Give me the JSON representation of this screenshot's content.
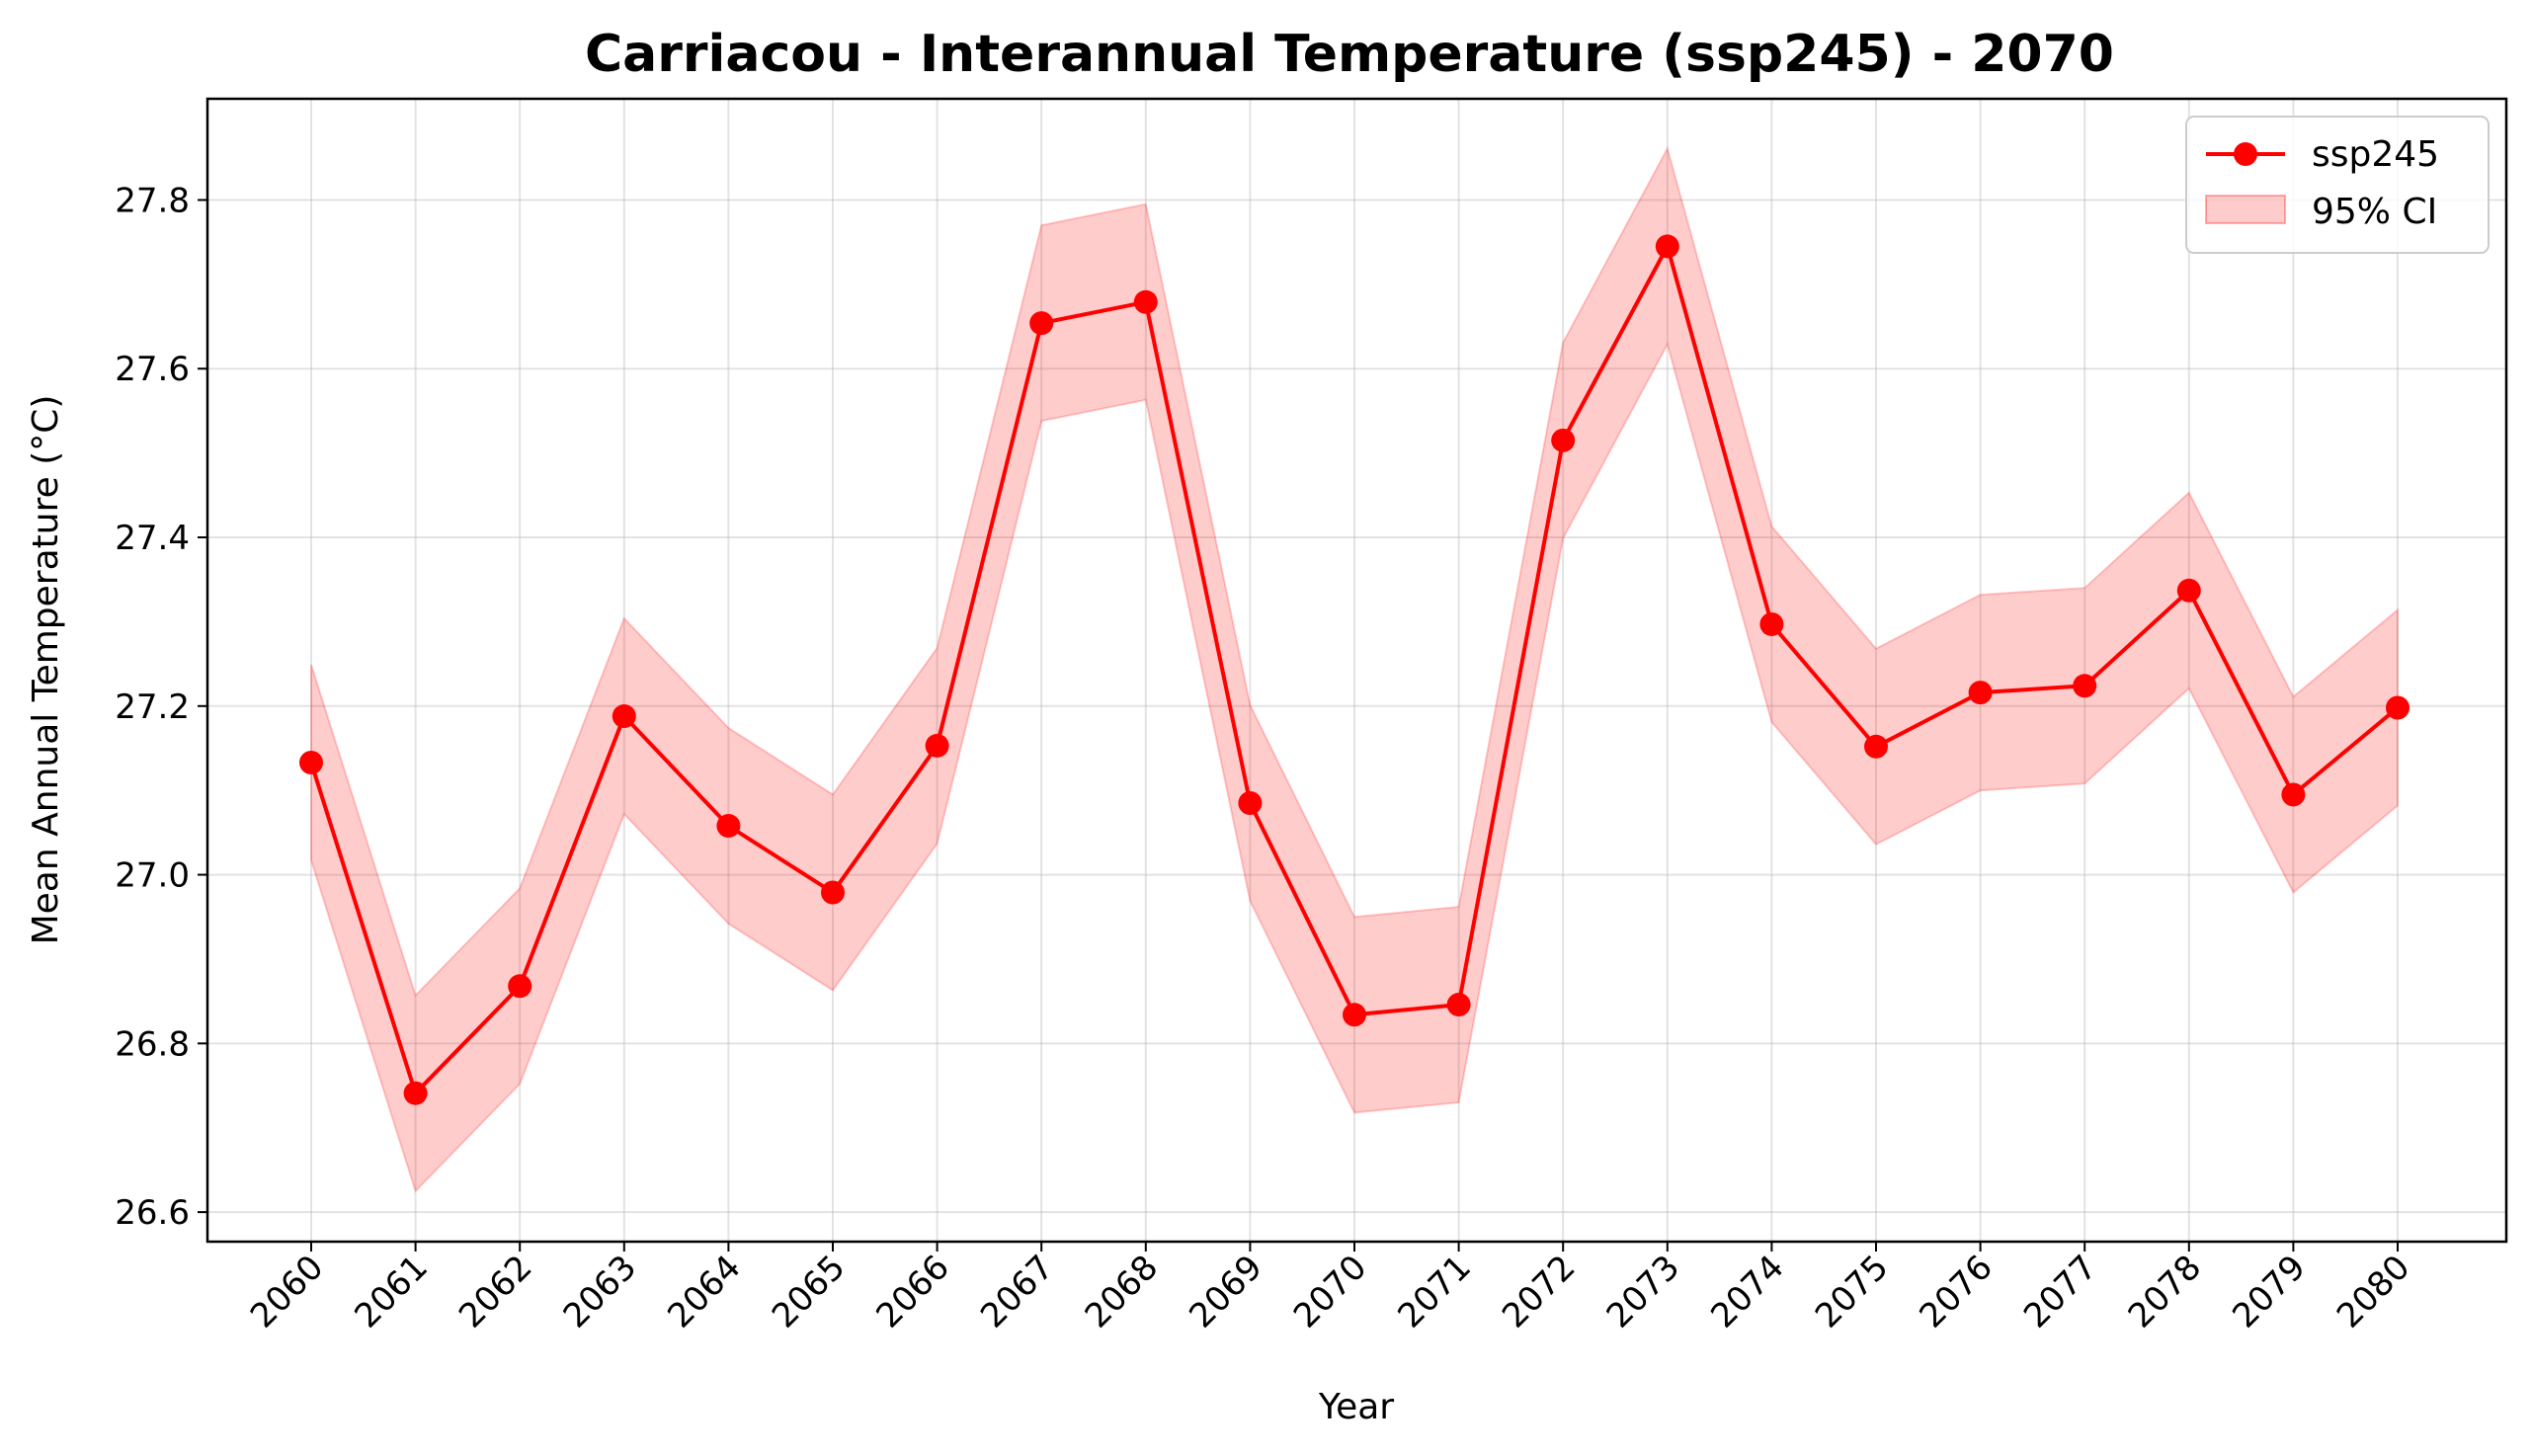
{
  "chart_data": {
    "type": "line",
    "title": "Carriacou - Interannual Temperature (ssp245) - 2070",
    "xlabel": "Year",
    "ylabel": "Mean Annual Temperature (°C)",
    "categories": [
      "2060",
      "2061",
      "2062",
      "2063",
      "2064",
      "2065",
      "2066",
      "2067",
      "2068",
      "2069",
      "2070",
      "2071",
      "2072",
      "2073",
      "2074",
      "2075",
      "2076",
      "2077",
      "2078",
      "2079",
      "2080"
    ],
    "series": [
      {
        "name": "ssp245",
        "color": "#ff0000",
        "values": [
          27.133,
          26.741,
          26.868,
          27.188,
          27.058,
          26.979,
          27.153,
          27.654,
          27.679,
          27.085,
          26.834,
          26.846,
          27.515,
          27.745,
          27.297,
          27.152,
          27.216,
          27.224,
          27.337,
          27.095,
          27.198
        ]
      }
    ],
    "ci": {
      "name": "95% CI",
      "color": "#ff0000",
      "lower": [
        27.017,
        26.625,
        26.752,
        27.072,
        26.942,
        26.863,
        27.037,
        27.538,
        27.563,
        26.969,
        26.718,
        26.73,
        27.399,
        27.629,
        27.181,
        27.036,
        27.1,
        27.108,
        27.221,
        26.979,
        27.082
      ],
      "upper": [
        27.249,
        26.857,
        26.984,
        27.304,
        27.174,
        27.095,
        27.269,
        27.77,
        27.795,
        27.201,
        26.95,
        26.962,
        27.631,
        27.861,
        27.413,
        27.268,
        27.332,
        27.34,
        27.453,
        27.211,
        27.314
      ]
    },
    "yticks": [
      "26.6",
      "26.8",
      "27.0",
      "27.2",
      "27.4",
      "27.6",
      "27.8"
    ],
    "ylim": [
      26.565,
      27.92
    ],
    "grid": true,
    "legend_position": "top-right"
  }
}
